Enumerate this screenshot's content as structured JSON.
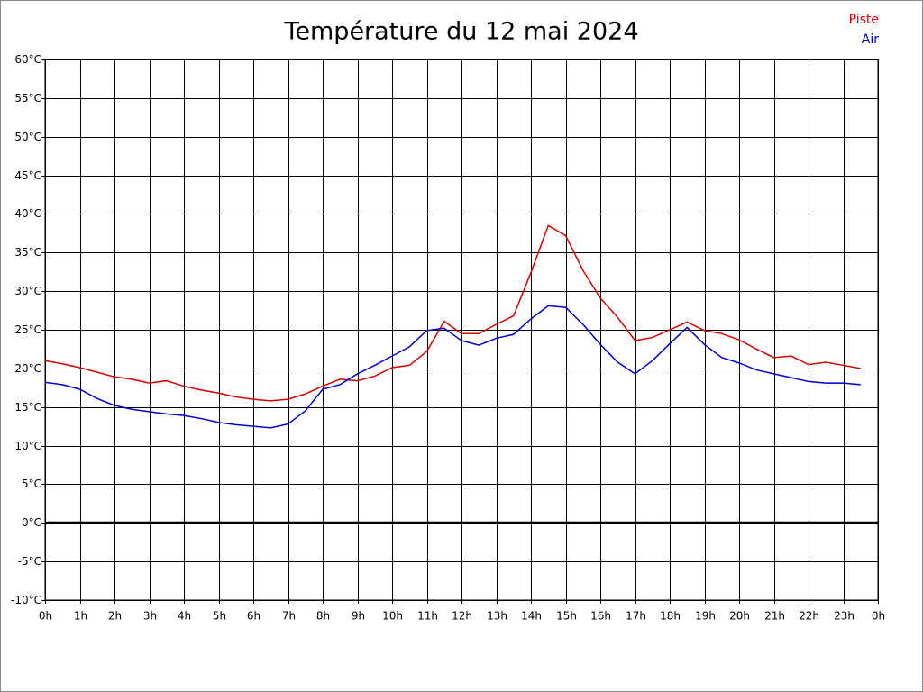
{
  "chart_data": {
    "type": "line",
    "title": "Température du 12 mai 2024",
    "x": [
      0,
      0.5,
      1,
      1.5,
      2,
      2.5,
      3,
      3.5,
      4,
      4.5,
      5,
      5.5,
      6,
      6.5,
      7,
      7.5,
      8,
      8.5,
      9,
      9.5,
      10,
      10.5,
      11,
      11.5,
      12,
      12.5,
      13,
      13.5,
      14,
      14.5,
      15,
      15.5,
      16,
      16.5,
      17,
      17.5,
      18,
      18.5,
      19,
      19.5,
      20,
      20.5,
      21,
      21.5,
      22,
      22.5,
      23,
      23.5
    ],
    "series": [
      {
        "name": "Piste",
        "color": "#d40000",
        "values": [
          21.0,
          20.6,
          20.1,
          19.5,
          18.9,
          18.6,
          18.1,
          18.4,
          17.7,
          17.2,
          16.8,
          16.3,
          16.0,
          15.8,
          16.0,
          16.7,
          17.7,
          18.6,
          18.4,
          19.0,
          20.1,
          20.4,
          22.2,
          26.1,
          24.5,
          24.5,
          25.7,
          26.8,
          32.4,
          38.5,
          37.2,
          32.7,
          29.1,
          26.6,
          23.6,
          24.0,
          25.0,
          26.0,
          24.9,
          24.5,
          23.7,
          22.5,
          21.4,
          21.6,
          20.5,
          20.8,
          20.4,
          20.0
        ]
      },
      {
        "name": "Air",
        "color": "#0000cc",
        "values": [
          18.2,
          17.9,
          17.3,
          16.1,
          15.2,
          14.7,
          14.4,
          14.1,
          13.9,
          13.5,
          13.0,
          12.7,
          12.5,
          12.3,
          12.8,
          14.5,
          17.3,
          17.9,
          19.3,
          20.4,
          21.6,
          22.8,
          24.9,
          25.2,
          23.6,
          23.0,
          23.9,
          24.4,
          26.4,
          28.1,
          27.9,
          25.7,
          23.1,
          20.8,
          19.3,
          21.0,
          23.2,
          25.3,
          23.1,
          21.4,
          20.7,
          19.8,
          19.3,
          18.8,
          18.3,
          18.1,
          18.1,
          17.9
        ]
      }
    ],
    "xlim": [
      0,
      24
    ],
    "xticks": [
      {
        "value": 0,
        "label": "0h"
      },
      {
        "value": 1,
        "label": "1h"
      },
      {
        "value": 2,
        "label": "2h"
      },
      {
        "value": 3,
        "label": "3h"
      },
      {
        "value": 4,
        "label": "4h"
      },
      {
        "value": 5,
        "label": "5h"
      },
      {
        "value": 6,
        "label": "6h"
      },
      {
        "value": 7,
        "label": "7h"
      },
      {
        "value": 8,
        "label": "8h"
      },
      {
        "value": 9,
        "label": "9h"
      },
      {
        "value": 10,
        "label": "10h"
      },
      {
        "value": 11,
        "label": "11h"
      },
      {
        "value": 12,
        "label": "12h"
      },
      {
        "value": 13,
        "label": "13h"
      },
      {
        "value": 14,
        "label": "14h"
      },
      {
        "value": 15,
        "label": "15h"
      },
      {
        "value": 16,
        "label": "16h"
      },
      {
        "value": 17,
        "label": "17h"
      },
      {
        "value": 18,
        "label": "18h"
      },
      {
        "value": 19,
        "label": "19h"
      },
      {
        "value": 20,
        "label": "20h"
      },
      {
        "value": 21,
        "label": "21h"
      },
      {
        "value": 22,
        "label": "22h"
      },
      {
        "value": 23,
        "label": "23h"
      },
      {
        "value": 24,
        "label": "0h"
      }
    ],
    "ylim": [
      -10,
      60
    ],
    "yticks": [
      {
        "value": -10,
        "label": "-10°C"
      },
      {
        "value": -5,
        "label": "-5°C"
      },
      {
        "value": 0,
        "label": "0°C"
      },
      {
        "value": 5,
        "label": "5°C"
      },
      {
        "value": 10,
        "label": "10°C"
      },
      {
        "value": 15,
        "label": "15°C"
      },
      {
        "value": 20,
        "label": "20°C"
      },
      {
        "value": 25,
        "label": "25°C"
      },
      {
        "value": 30,
        "label": "30°C"
      },
      {
        "value": 35,
        "label": "35°C"
      },
      {
        "value": 40,
        "label": "40°C"
      },
      {
        "value": 45,
        "label": "45°C"
      },
      {
        "value": 50,
        "label": "50°C"
      },
      {
        "value": 55,
        "label": "55°C"
      },
      {
        "value": 60,
        "label": "60°C"
      }
    ],
    "grid": true,
    "legend": "top-right"
  }
}
